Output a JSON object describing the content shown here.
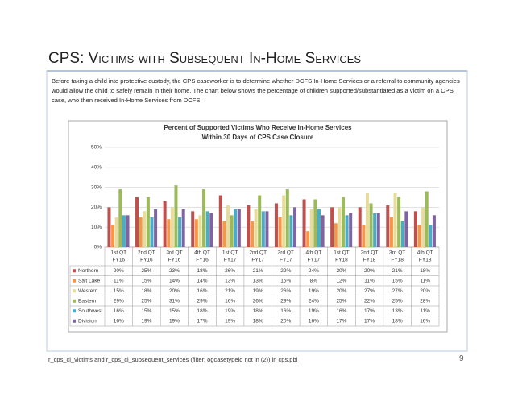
{
  "slide": {
    "title": "CPS: Victims with Subsequent In-Home Services",
    "description": "Before taking a child into protective custody, the CPS caseworker is to determine whether DCFS In-Home Services or a referral to community agencies would allow the child to safely remain in their home.  The chart below shows the percentage of children supported/substantiated as a victim on a CPS case, who then received In-Home Services from DCFS.",
    "footer": "r_cps_cl_victims and r_cps_cl_subsequent_services (filter: ogcasetypeid not in (2)) in cps.pbl",
    "page_number": "9"
  },
  "chart_data": {
    "type": "bar",
    "title": [
      "Percent of Supported Victims Who Receive In-Home Services",
      "Within 30 Days of CPS Case Closure"
    ],
    "categories": [
      [
        "1st QT",
        "FY16"
      ],
      [
        "2nd QT",
        "FY16"
      ],
      [
        "3rd QT",
        "FY16"
      ],
      [
        "4th QT",
        "FY16"
      ],
      [
        "1st QT",
        "FY17"
      ],
      [
        "2nd QT",
        "FY17"
      ],
      [
        "3rd QT",
        "FY17"
      ],
      [
        "4th QT",
        "FY17"
      ],
      [
        "1st QT",
        "FY18"
      ],
      [
        "2nd QT",
        "FY18"
      ],
      [
        "3rd QT",
        "FY18"
      ],
      [
        "4th QT",
        "FY18"
      ]
    ],
    "ylim": [
      0,
      50
    ],
    "yticks": [
      {
        "value": 0,
        "label": "0%"
      },
      {
        "value": 10,
        "label": "10%"
      },
      {
        "value": 20,
        "label": "20%"
      },
      {
        "value": 30,
        "label": "30%"
      },
      {
        "value": 40,
        "label": "40%"
      },
      {
        "value": 50,
        "label": "50%"
      }
    ],
    "grid": true,
    "series": [
      {
        "name": "Northern",
        "color": "#c0504d",
        "values": [
          20,
          25,
          23,
          18,
          26,
          21,
          22,
          24,
          20,
          20,
          21,
          18
        ],
        "value_labels": [
          "20%",
          "25%",
          "23%",
          "18%",
          "26%",
          "21%",
          "22%",
          "24%",
          "20%",
          "20%",
          "21%",
          "18%"
        ]
      },
      {
        "name": "Salt Lake",
        "color": "#f79646",
        "values": [
          11,
          15,
          14,
          14,
          13,
          13,
          15,
          8,
          12,
          11,
          15,
          11
        ],
        "value_labels": [
          "11%",
          "15%",
          "14%",
          "14%",
          "13%",
          "13%",
          "15%",
          "8%",
          "12%",
          "11%",
          "15%",
          "11%"
        ]
      },
      {
        "name": "Western",
        "color": "#e8dc9a",
        "values": [
          15,
          18,
          20,
          16,
          21,
          19,
          26,
          19,
          20,
          27,
          27,
          20
        ],
        "value_labels": [
          "15%",
          "18%",
          "20%",
          "16%",
          "21%",
          "19%",
          "26%",
          "19%",
          "20%",
          "27%",
          "27%",
          "20%"
        ]
      },
      {
        "name": "Eastern",
        "color": "#9bbb59",
        "values": [
          29,
          25,
          31,
          29,
          16,
          26,
          29,
          24,
          25,
          22,
          25,
          28
        ],
        "value_labels": [
          "29%",
          "25%",
          "31%",
          "29%",
          "16%",
          "26%",
          "29%",
          "24%",
          "25%",
          "22%",
          "25%",
          "28%"
        ]
      },
      {
        "name": "Southwest",
        "color": "#4bacc6",
        "values": [
          16,
          15,
          15,
          18,
          19,
          18,
          16,
          19,
          16,
          17,
          13,
          11
        ],
        "value_labels": [
          "16%",
          "15%",
          "15%",
          "18%",
          "19%",
          "18%",
          "16%",
          "19%",
          "16%",
          "17%",
          "13%",
          "11%"
        ]
      },
      {
        "name": "Division",
        "color": "#8064a2",
        "values": [
          16,
          19,
          19,
          17,
          19,
          18,
          20,
          16,
          17,
          17,
          18,
          16
        ],
        "value_labels": [
          "16%",
          "19%",
          "19%",
          "17%",
          "19%",
          "18%",
          "20%",
          "16%",
          "17%",
          "17%",
          "18%",
          "16%"
        ]
      }
    ]
  }
}
